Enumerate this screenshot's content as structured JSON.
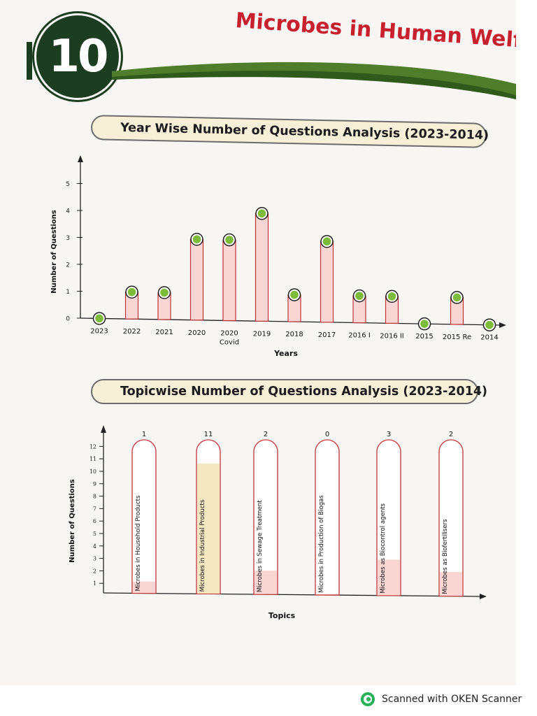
{
  "chapter": {
    "number": "10",
    "title": "Microbes in Human Welfare"
  },
  "colors": {
    "accent_green": "#1d3d22",
    "title_red": "#c8202e",
    "bar_stroke": "#c0343b",
    "bar_fill": "#f9d6d3",
    "marker_green": "#7dbb3a",
    "industrial_fill": "#f6e7c3"
  },
  "chart_data": [
    {
      "type": "bar",
      "title": "Year Wise Number of Questions Analysis (2023-2014)",
      "xlabel": "Years",
      "ylabel": "Number of Questions",
      "ylim": [
        0,
        5
      ],
      "yticks": [
        "0",
        "1",
        "2",
        "3",
        "4",
        "5"
      ],
      "categories": [
        "2023",
        "2022",
        "2021",
        "2020",
        "2020\nCovid",
        "2019",
        "2018",
        "2017",
        "2016 I",
        "2016 II",
        "2015",
        "2015 Re",
        "2014"
      ],
      "values": [
        0,
        1,
        1,
        3,
        3,
        4,
        1,
        3,
        1,
        1,
        0,
        1,
        0
      ],
      "grid": false,
      "legend": "none"
    },
    {
      "type": "bar",
      "title": "Topicwise Number of Questions Analysis (2023-2014)",
      "xlabel": "Topics",
      "ylabel": "Number of Questions",
      "ylim": [
        0,
        12
      ],
      "yticks": [
        "1",
        "2",
        "3",
        "4",
        "5",
        "6",
        "7",
        "8",
        "9",
        "10",
        "11",
        "12"
      ],
      "categories": [
        "Microbes in Household Products",
        "Microbes in Industrial Products",
        "Microbes in Sewage Treatment",
        "Microbes in Production of Biogas",
        "Microbes as Biocontrol agents",
        "Microbes as Biofertilisers"
      ],
      "values": [
        1,
        11,
        2,
        0,
        3,
        2
      ],
      "value_labels": [
        "1",
        "11",
        "2",
        "0",
        "3",
        "2"
      ],
      "grid": false,
      "legend": "none"
    }
  ],
  "footer": {
    "scanner_text": "Scanned with OKEN Scanner"
  }
}
